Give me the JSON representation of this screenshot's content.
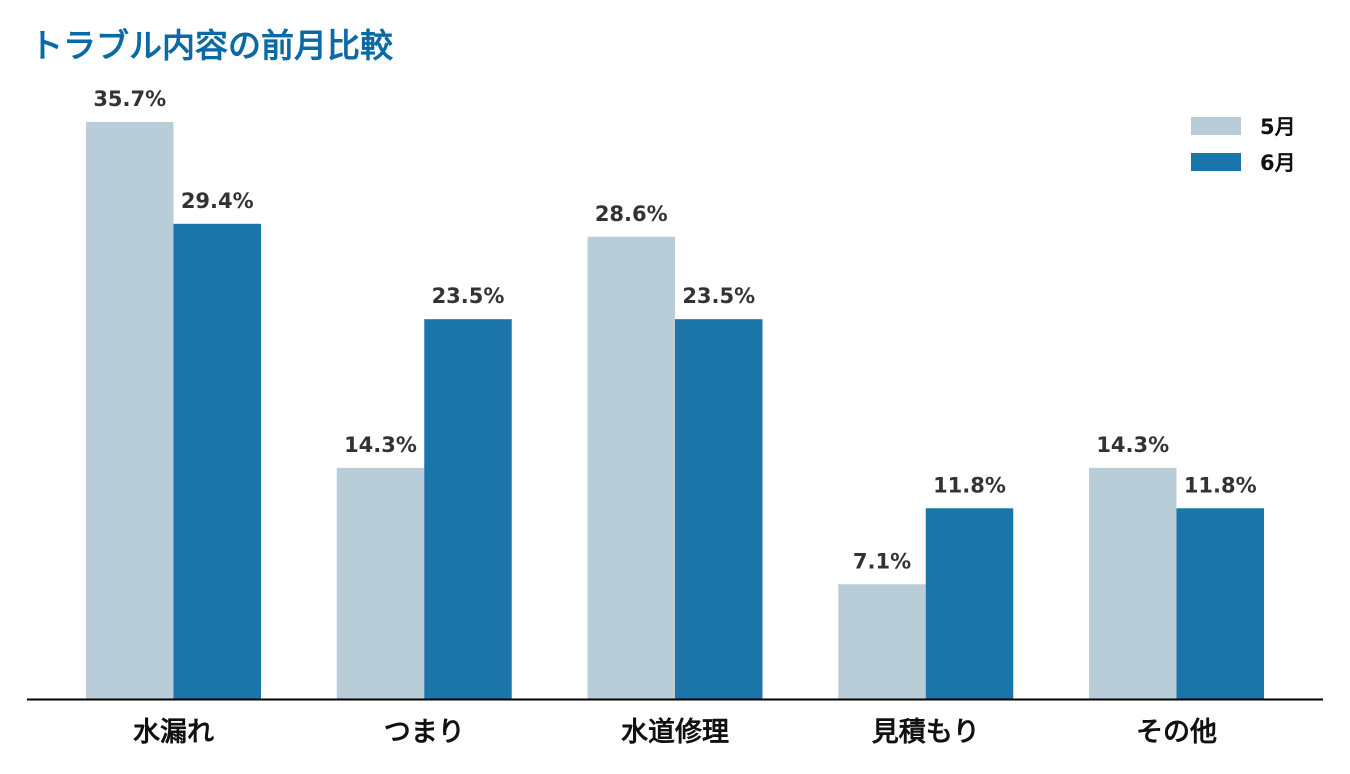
{
  "chart_data": {
    "type": "bar",
    "title": "トラブル内容の前月比較",
    "categories": [
      "水漏れ",
      "つまり",
      "水道修理",
      "見積もり",
      "その他"
    ],
    "series": [
      {
        "name": "5月",
        "color": "#b8cdd7",
        "values": [
          35.7,
          14.3,
          28.6,
          7.1,
          14.3
        ],
        "labels": [
          "35.7%",
          "14.3%",
          "28.6%",
          "7.1%",
          "14.3%"
        ]
      },
      {
        "name": "6月",
        "color": "#1c75aa",
        "values": [
          29.4,
          23.5,
          23.5,
          11.8,
          11.8
        ],
        "labels": [
          "29.4%",
          "23.5%",
          "23.5%",
          "11.8%",
          "11.8%"
        ]
      }
    ],
    "ylim": [
      0,
      35.7
    ],
    "grid": false,
    "legend_position": "top-right",
    "title_color": "#0b6aa4",
    "axis_color": "#000000"
  }
}
